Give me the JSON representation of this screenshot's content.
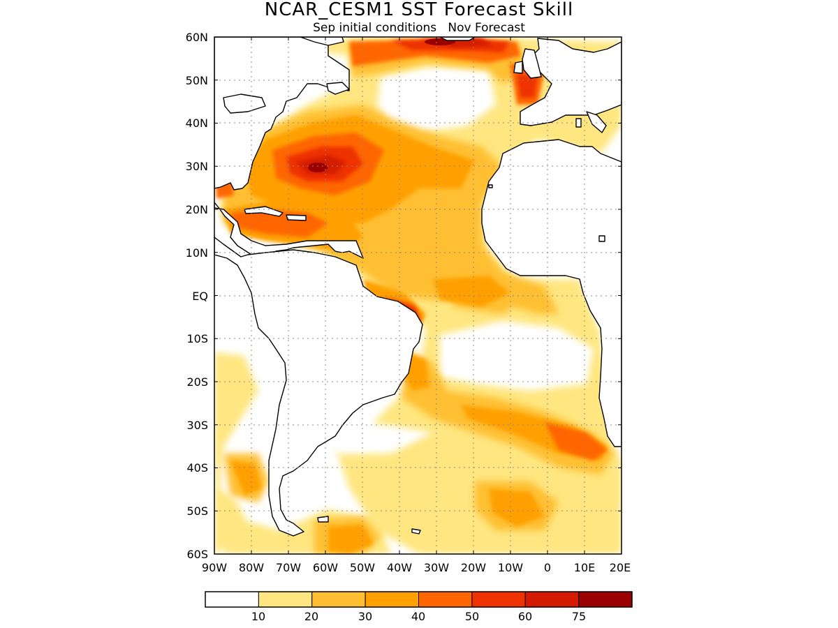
{
  "title": "NCAR_CESM1 SST Forecast Skill",
  "subtitle": "Sep initial conditions   Nov Forecast",
  "map": {
    "lon_range": [
      -90,
      20
    ],
    "lat_range": [
      -60,
      60
    ],
    "lat_labels": [
      "60N",
      "50N",
      "40N",
      "30N",
      "20N",
      "10N",
      "EQ",
      "10S",
      "20S",
      "30S",
      "40S",
      "50S",
      "60S"
    ],
    "lon_labels": [
      "90W",
      "80W",
      "70W",
      "60W",
      "50W",
      "40W",
      "30W",
      "20W",
      "10W",
      "0",
      "10E",
      "20E"
    ],
    "grid": true
  },
  "colorbar": {
    "labels": [
      "10",
      "20",
      "30",
      "40",
      "50",
      "60",
      "75"
    ],
    "colors": [
      "#ffffff",
      "#ffe680",
      "#ffbf33",
      "#ffa000",
      "#ff6600",
      "#ee3300",
      "#d41a00",
      "#9b0000"
    ]
  },
  "colors": {
    "land": "#ffffff",
    "coast": "#000000"
  }
}
